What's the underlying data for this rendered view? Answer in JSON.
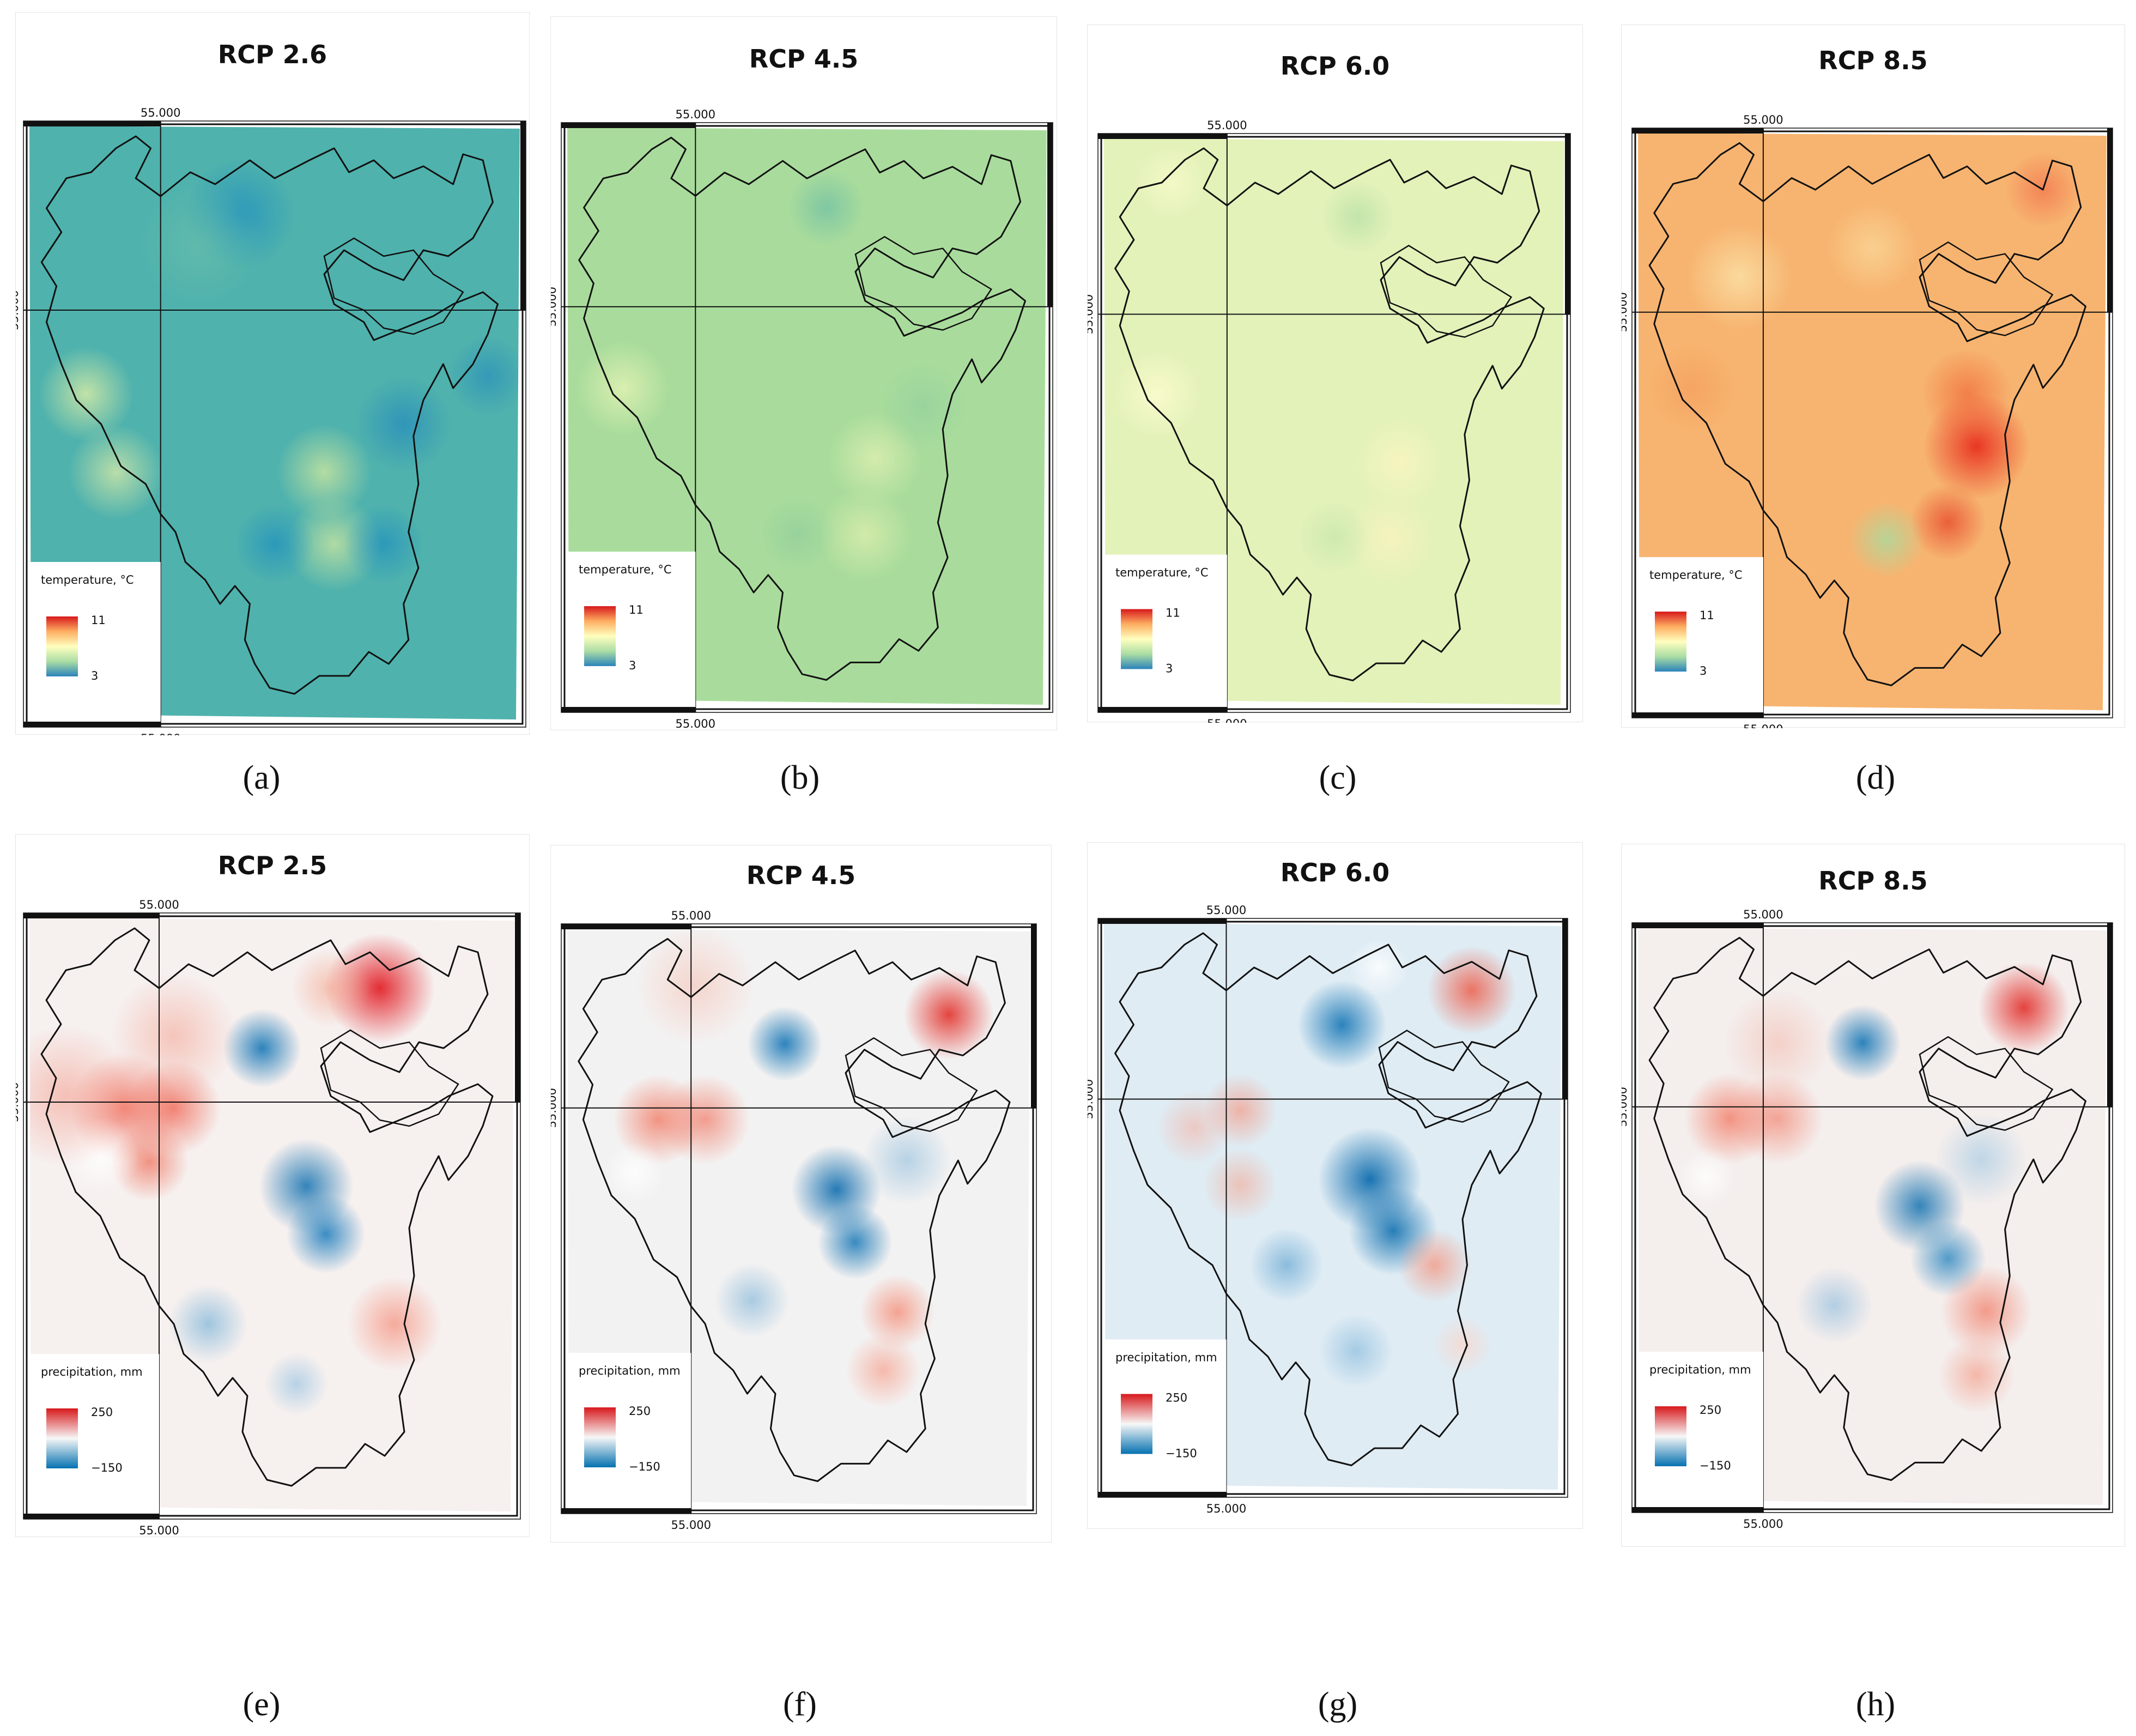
{
  "grid_label": "55.000",
  "panels": [
    {
      "title": "RCP 2.6",
      "caption": "(a)",
      "variable": "temperature",
      "legend_title": "temperature, °C",
      "legend_max": "11",
      "legend_min": "3",
      "base_color": "#4fb2ad"
    },
    {
      "title": "RCP 4.5",
      "caption": "(b)",
      "variable": "temperature",
      "legend_title": "temperature, °C",
      "legend_max": "11",
      "legend_min": "3",
      "base_color": "#a9dc9c"
    },
    {
      "title": "RCP 6.0",
      "caption": "(c)",
      "variable": "temperature",
      "legend_title": "temperature, °C",
      "legend_max": "11",
      "legend_min": "3",
      "base_color": "#e3f2b9"
    },
    {
      "title": "RCP 8.5",
      "caption": "(d)",
      "variable": "temperature",
      "legend_title": "temperature, °C",
      "legend_max": "11",
      "legend_min": "3",
      "base_color": "#f7b470"
    },
    {
      "title": "RCP 2.5",
      "caption": "(e)",
      "variable": "precipitation",
      "legend_title": "precipitation, mm",
      "legend_max": "250",
      "legend_min": "−150",
      "base_color": "#f6f0ef"
    },
    {
      "title": "RCP 4.5",
      "caption": "(f)",
      "variable": "precipitation",
      "legend_title": "precipitation, mm",
      "legend_max": "250",
      "legend_min": "−150",
      "base_color": "#f3f2f2"
    },
    {
      "title": "RCP 6.0",
      "caption": "(g)",
      "variable": "precipitation",
      "legend_title": "precipitation, mm",
      "legend_max": "250",
      "legend_min": "−150",
      "base_color": "#dfecf4"
    },
    {
      "title": "RCP 8.5",
      "caption": "(h)",
      "variable": "precipitation",
      "legend_title": "precipitation, mm",
      "legend_max": "250",
      "legend_min": "−150",
      "base_color": "#f4eeed"
    }
  ],
  "colors": {
    "temp_ramp": [
      "#d7191c",
      "#fdae61",
      "#ffffbf",
      "#abdda4",
      "#2b83ba"
    ],
    "precip_ramp": [
      "#d7191c",
      "#f7f7f7",
      "#0571b0"
    ]
  }
}
